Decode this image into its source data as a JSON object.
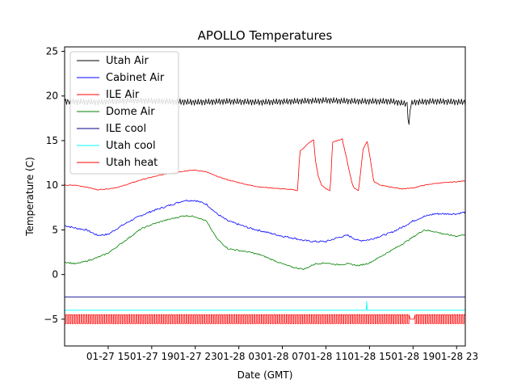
{
  "chart_data": {
    "type": "line",
    "title": "APOLLO Temperatures",
    "xlabel": "Date (GMT)",
    "ylabel": "Temperature (C)",
    "xlim": [
      11.0,
      47.8
    ],
    "ylim": [
      -8,
      25.5
    ],
    "grid": false,
    "legend_position": "top-left",
    "x_ticks": [
      {
        "value": 15,
        "label": "01-27 15"
      },
      {
        "value": 19,
        "label": "01-27 19"
      },
      {
        "value": 23,
        "label": "01-27 23"
      },
      {
        "value": 27,
        "label": "01-28 03"
      },
      {
        "value": 31,
        "label": "01-28 07"
      },
      {
        "value": 35,
        "label": "01-28 11"
      },
      {
        "value": 39,
        "label": "01-28 15"
      },
      {
        "value": 43,
        "label": "01-28 19"
      },
      {
        "value": 47,
        "label": "01-28 23"
      }
    ],
    "y_ticks": [
      {
        "value": 25,
        "label": "25"
      },
      {
        "value": 20,
        "label": "20"
      },
      {
        "value": 15,
        "label": "15"
      },
      {
        "value": 10,
        "label": "10"
      },
      {
        "value": 5,
        "label": "5"
      },
      {
        "value": 0,
        "label": "0"
      },
      {
        "value": -5,
        "label": "−5"
      }
    ],
    "series": [
      {
        "name": "Utah Air",
        "color": "#000000",
        "x": [
          11.0,
          14.0,
          17.0,
          20.0,
          23.0,
          26.0,
          29.0,
          32.0,
          35.0,
          38.0,
          41.0,
          42.5,
          42.6,
          42.75,
          43.0,
          45.0,
          47.8
        ],
        "y": [
          19.4,
          19.3,
          19.5,
          19.4,
          19.3,
          19.4,
          19.3,
          19.4,
          19.5,
          19.4,
          19.4,
          19.1,
          15.9,
          19.0,
          19.3,
          19.4,
          19.3
        ],
        "jitter": 0.35
      },
      {
        "name": "Cabinet Air",
        "color": "#0000ff",
        "x": [
          11.0,
          12.0,
          13.0,
          14.0,
          15.0,
          16.0,
          17.0,
          18.0,
          19.0,
          20.0,
          21.0,
          22.0,
          23.0,
          24.0,
          25.0,
          26.0,
          27.0,
          28.0,
          29.0,
          30.0,
          31.0,
          32.0,
          33.0,
          34.0,
          35.0,
          36.0,
          37.0,
          38.0,
          39.0,
          40.0,
          41.0,
          42.0,
          43.0,
          44.0,
          45.0,
          46.0,
          47.0,
          47.8
        ],
        "y": [
          5.5,
          5.2,
          5.0,
          4.4,
          4.5,
          5.3,
          6.0,
          6.6,
          7.1,
          7.5,
          7.9,
          8.3,
          8.3,
          7.9,
          6.8,
          6.0,
          5.6,
          5.2,
          4.9,
          4.6,
          4.3,
          4.1,
          3.8,
          3.7,
          3.7,
          4.1,
          4.4,
          3.8,
          3.9,
          4.3,
          4.7,
          5.3,
          6.0,
          6.5,
          6.8,
          6.8,
          6.8,
          7.0
        ],
        "jitter": 0.2
      },
      {
        "name": "ILE Air",
        "color": "#ff0000",
        "x": [
          11.0,
          12.0,
          13.0,
          14.0,
          15.0,
          16.0,
          17.0,
          18.0,
          19.0,
          20.0,
          21.0,
          22.0,
          23.0,
          24.0,
          25.0,
          26.0,
          27.0,
          28.0,
          29.0,
          30.0,
          31.0,
          32.0,
          32.4,
          32.6,
          33.5,
          33.9,
          34.0,
          34.3,
          34.6,
          35.0,
          35.4,
          35.6,
          36.5,
          37.4,
          37.6,
          38.0,
          38.4,
          38.8,
          39.4,
          40.0,
          41.0,
          42.0,
          43.0,
          44.0,
          45.0,
          46.0,
          47.0,
          47.8
        ],
        "y": [
          10.0,
          10.0,
          9.8,
          9.5,
          9.6,
          9.8,
          10.2,
          10.6,
          10.9,
          11.2,
          11.4,
          11.6,
          11.7,
          11.5,
          11.0,
          10.6,
          10.3,
          10.0,
          9.8,
          9.7,
          9.6,
          9.5,
          9.4,
          13.8,
          14.8,
          15.1,
          13.0,
          11.0,
          10.0,
          9.6,
          9.4,
          14.8,
          15.2,
          10.2,
          9.7,
          9.4,
          14.0,
          15.0,
          10.4,
          10.0,
          9.8,
          9.6,
          9.7,
          10.0,
          10.2,
          10.3,
          10.4,
          10.5
        ],
        "jitter": 0.08
      },
      {
        "name": "Dome Air",
        "color": "#008000",
        "x": [
          11.0,
          12.0,
          13.0,
          14.0,
          15.0,
          16.0,
          17.0,
          18.0,
          19.0,
          20.0,
          21.0,
          22.0,
          23.0,
          24.0,
          25.0,
          26.0,
          27.0,
          28.0,
          29.0,
          30.0,
          31.0,
          32.0,
          33.0,
          34.0,
          35.0,
          36.0,
          37.0,
          38.0,
          39.0,
          40.0,
          41.0,
          42.0,
          43.0,
          44.0,
          45.0,
          46.0,
          47.0,
          47.8
        ],
        "y": [
          1.4,
          1.2,
          1.5,
          1.9,
          2.4,
          3.3,
          4.2,
          5.1,
          5.6,
          6.0,
          6.3,
          6.6,
          6.5,
          6.0,
          4.0,
          2.9,
          2.7,
          2.5,
          2.2,
          1.7,
          1.2,
          0.8,
          0.6,
          1.2,
          1.3,
          1.1,
          1.2,
          1.0,
          1.3,
          2.0,
          2.7,
          3.4,
          4.2,
          5.0,
          4.8,
          4.5,
          4.3,
          4.5
        ],
        "jitter": 0.15
      },
      {
        "name": "ILE cool",
        "color": "#00008b",
        "x": [
          11.0,
          47.8
        ],
        "y": [
          -2.5,
          -2.5
        ],
        "jitter": 0
      },
      {
        "name": "Utah cool",
        "color": "#00ffff",
        "x": [
          11.0,
          38.7,
          38.75,
          38.8,
          47.8
        ],
        "y": [
          -4.0,
          -4.0,
          -3.0,
          -4.0,
          -4.0
        ],
        "jitter": 0
      },
      {
        "name": "Utah heat",
        "color": "#ff0000",
        "x": [
          11.0,
          47.8
        ],
        "y": [
          -5.0,
          -5.0
        ],
        "pulse_low": -4.5,
        "pulse_high": -5.5,
        "pulse_spacing_hours": 0.23,
        "gap": [
          42.7,
          43.1
        ],
        "jitter": 0
      }
    ]
  }
}
